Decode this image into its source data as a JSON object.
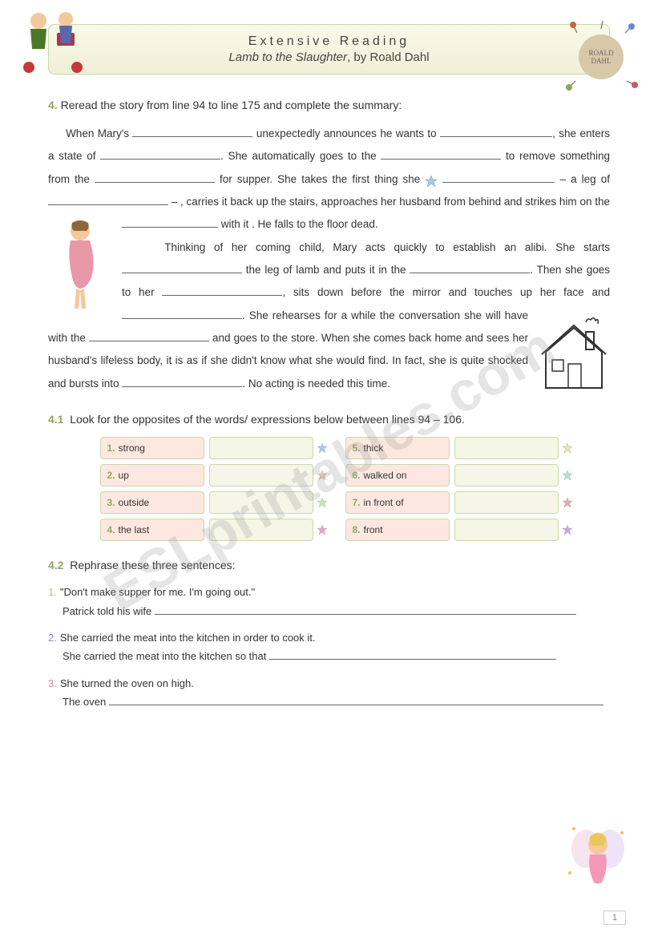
{
  "watermark": "ESLprintables.com",
  "header": {
    "title": "Extensive Reading",
    "subtitle_italic": "Lamb to the Slaughter",
    "subtitle_rest": ", by Roald Dahl"
  },
  "q4": {
    "num": "4.",
    "instr": "Reread the story from line 94 to line 175 and complete the summary:",
    "p1a": "When Mary's ",
    "p1b": " unexpectedly announces he wants to ",
    "p1c": ", she enters a state of ",
    "p1d": ". She automatically goes to the ",
    "p1e": " to remove something from the ",
    "p1f": " for supper. She takes the first thing she ",
    "p1g": " – a leg of ",
    "p1h": " – , carries it back up the stairs, approaches her husband from behind and strikes him on the ",
    "p1i": " with it . He falls to the floor dead.",
    "p2a": "Thinking of her coming child, Mary acts quickly to establish an alibi. She starts ",
    "p2b": " the leg of lamb and puts it in the ",
    "p2c": ". Then she goes to her ",
    "p2d": ", sits down before the mirror and touches up her face and ",
    "p2e": ". She rehearses for a while the conversation she will have with the ",
    "p2f": " and goes to the store. When she comes back home and sees her husband's lifeless body, it is as if she didn't know what she would find. In fact, she is quite shocked and bursts into ",
    "p2g": ". No acting is needed this time."
  },
  "q41": {
    "num": "4.1",
    "instr": "Look for the opposites of the words/ expressions below between lines 94 – 106.",
    "left": [
      {
        "n": "1.",
        "w": "strong"
      },
      {
        "n": "2.",
        "w": "up"
      },
      {
        "n": "3.",
        "w": "outside"
      },
      {
        "n": "4.",
        "w": "the last"
      }
    ],
    "right": [
      {
        "n": "5.",
        "w": "thick"
      },
      {
        "n": "6.",
        "w": "walked on"
      },
      {
        "n": "7.",
        "w": "in front of"
      },
      {
        "n": "8.",
        "w": "front"
      }
    ]
  },
  "q42": {
    "num": "4.2",
    "instr": "Rephrase these three sentences:",
    "items": [
      {
        "n": "1.",
        "orig": "\"Don't make supper for me. I'm going out.\"",
        "start": "Patrick told his wife "
      },
      {
        "n": "2.",
        "orig": "She carried the meat into the kitchen in order to cook it.",
        "start": "She carried the meat into the kitchen so that "
      },
      {
        "n": "3.",
        "orig": "She turned the oven on high.",
        "start": "The oven "
      }
    ]
  },
  "pagenum": "1",
  "colors": {
    "accent": "#8fa860",
    "band_border": "#c9d9a9",
    "cell_word": "#fce8e0",
    "cell_answer": "#f5f5e8"
  }
}
